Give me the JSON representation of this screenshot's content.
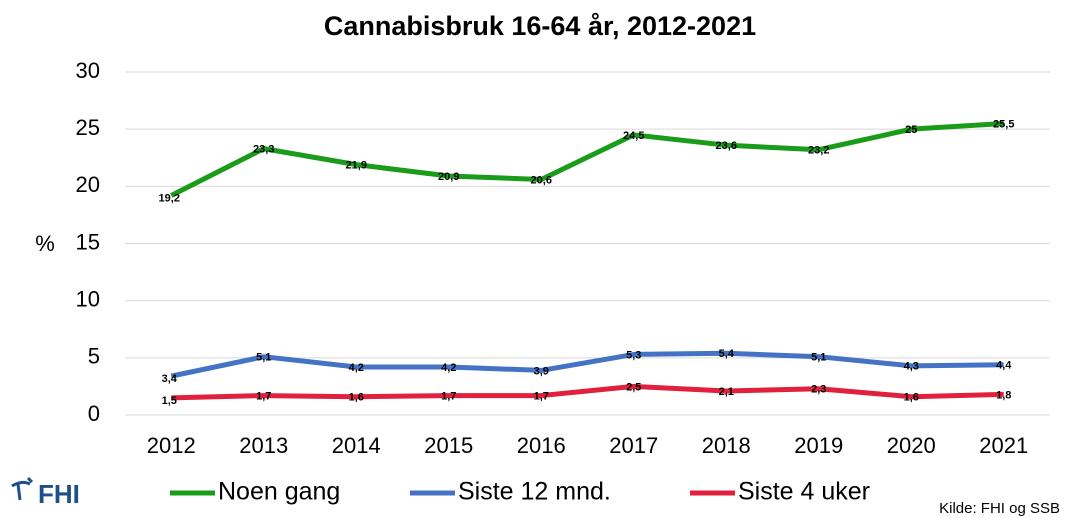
{
  "chart_data": {
    "type": "line",
    "title": "Cannabisbruk 16-64 år, 2012-2021",
    "y_label": "%",
    "categories": [
      "2012",
      "2013",
      "2014",
      "2015",
      "2016",
      "2017",
      "2018",
      "2019",
      "2020",
      "2021"
    ],
    "series": [
      {
        "name": "Noen gang",
        "color": "#1a9c1a",
        "values": [
          19.2,
          23.3,
          21.9,
          20.9,
          20.6,
          24.5,
          23.6,
          23.2,
          25,
          25.5
        ],
        "value_labels": [
          "19,2",
          "23,3",
          "21,9",
          "20,9",
          "20,6",
          "24,5",
          "23,6",
          "23,2",
          "25",
          "25,5"
        ]
      },
      {
        "name": "Siste 12 mnd.",
        "color": "#4472c4",
        "values": [
          3.4,
          5.1,
          4.2,
          4.2,
          3.9,
          5.3,
          5.4,
          5.1,
          4.3,
          4.4
        ],
        "value_labels": [
          "3,4",
          "5,1",
          "4,2",
          "4,2",
          "3,9",
          "5,3",
          "5,4",
          "5,1",
          "4,3",
          "4,4"
        ]
      },
      {
        "name": "Siste 4 uker",
        "color": "#e0203c",
        "values": [
          1.5,
          1.7,
          1.6,
          1.7,
          1.7,
          2.5,
          2.1,
          2.3,
          1.6,
          1.8
        ],
        "value_labels": [
          "1,5",
          "1,7",
          "1,6",
          "1,7",
          "1,7",
          "2,5",
          "2,1",
          "2,3",
          "1,6",
          "1,8"
        ]
      }
    ],
    "ylim": [
      0,
      30
    ],
    "yticks": [
      0,
      5,
      10,
      15,
      20,
      25,
      30
    ],
    "grid": true,
    "legend": "bottom",
    "source": "Kilde: FHI og SSB",
    "logo": "FHI"
  }
}
